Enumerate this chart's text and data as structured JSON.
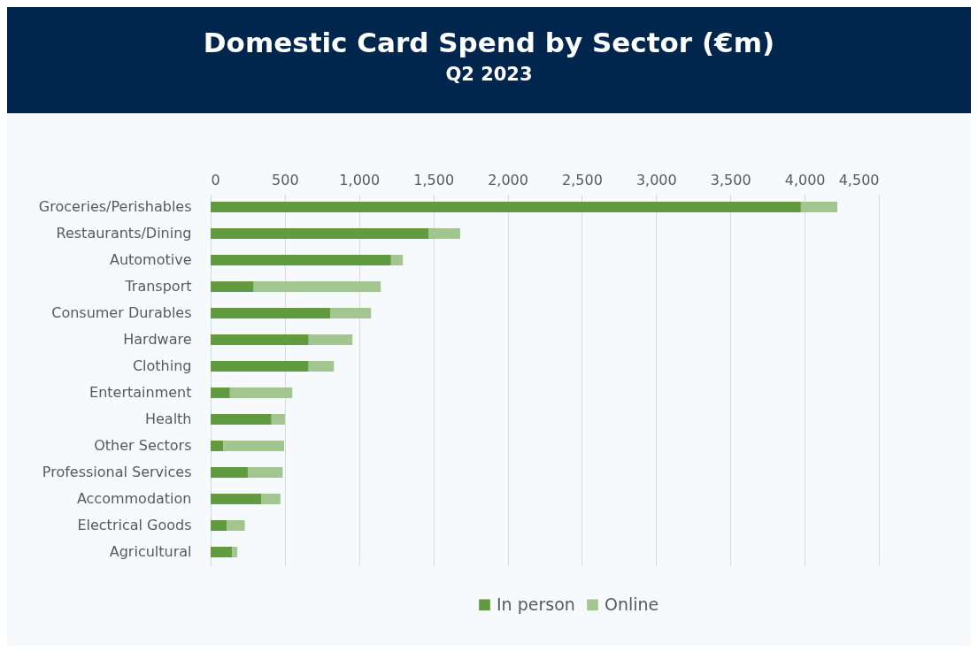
{
  "chart_data": {
    "type": "bar",
    "orientation": "horizontal",
    "stacked": true,
    "title": "Domestic Card Spend by Sector (€m)",
    "subtitle": "Q2 2023",
    "categories": [
      "Groceries/Perishables",
      "Restaurants/Dining",
      "Automotive",
      "Transport",
      "Consumer Durables",
      "Hardware",
      "Clothing",
      "Entertainment",
      "Health",
      "Other Sectors",
      "Professional Services",
      "Accommodation",
      "Electrical Goods",
      "Agricultural"
    ],
    "series": [
      {
        "name": "In person",
        "color": "#629a3f",
        "values": [
          3975,
          1470,
          1215,
          290,
          805,
          660,
          660,
          130,
          410,
          85,
          250,
          340,
          110,
          145
        ]
      },
      {
        "name": "Online",
        "color": "#a3c590",
        "values": [
          245,
          210,
          80,
          855,
          275,
          295,
          170,
          420,
          90,
          410,
          235,
          130,
          120,
          35
        ]
      }
    ],
    "xlim": [
      0,
      4500
    ],
    "xticks": [
      0,
      500,
      {
        "value": 1000,
        "label": "1,000"
      },
      {
        "value": 1500,
        "label": "1,500"
      },
      {
        "value": 2000,
        "label": "2,000"
      },
      {
        "value": 2500,
        "label": "2,500"
      },
      {
        "value": 3000,
        "label": "3,000"
      },
      {
        "value": 3500,
        "label": "3,500"
      },
      {
        "value": 4000,
        "label": "4,000"
      },
      {
        "value": 4500,
        "label": "4,500"
      }
    ],
    "grid": "x",
    "legend": "bottom"
  }
}
